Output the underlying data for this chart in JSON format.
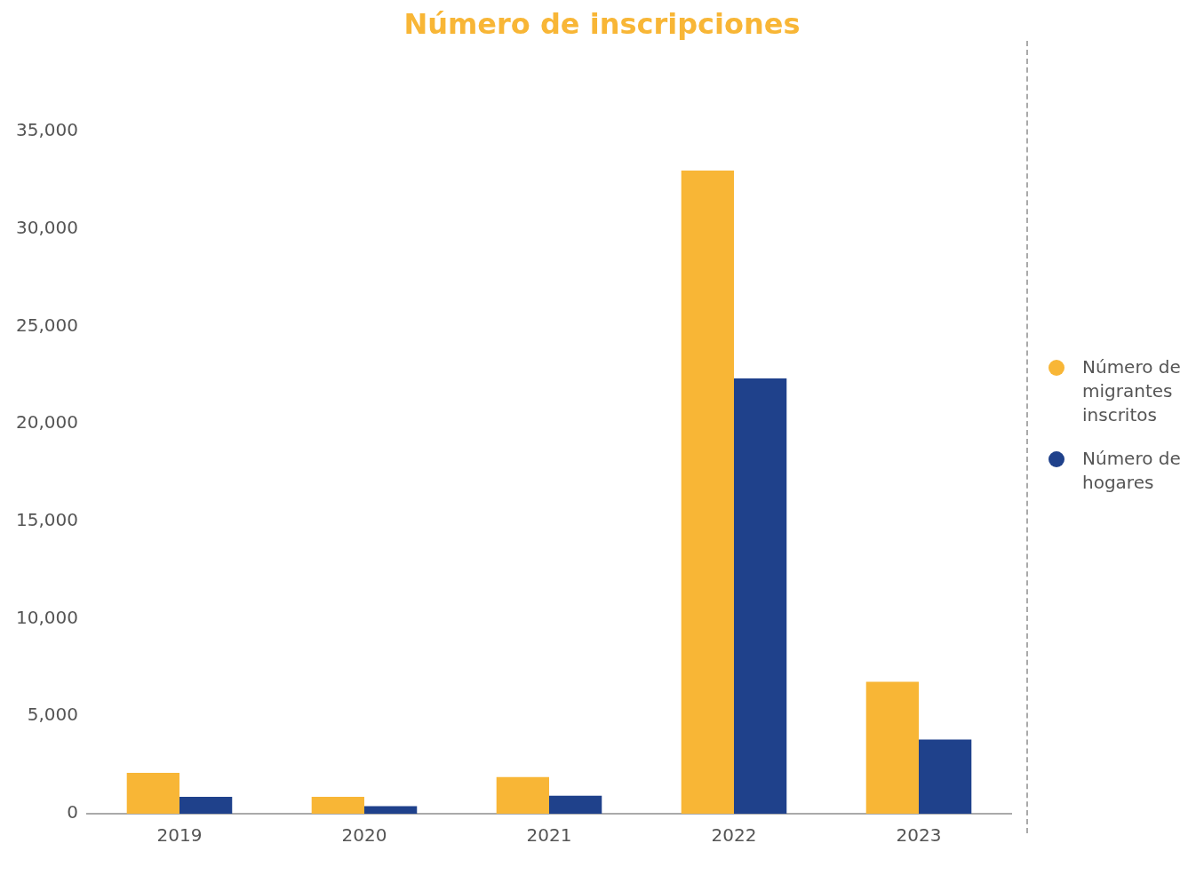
{
  "chart_data": {
    "type": "bar",
    "title": "Número de inscripciones",
    "categories": [
      "2019",
      "2020",
      "2021",
      "2022",
      "2023"
    ],
    "series": [
      {
        "name": "Número de migrantes inscritos",
        "color": "#f8b636",
        "values": [
          2100,
          870,
          1880,
          33000,
          6770
        ]
      },
      {
        "name": "Número de hogares",
        "color": "#1f418b",
        "values": [
          870,
          390,
          920,
          22330,
          3800
        ]
      }
    ],
    "ylim": [
      0,
      35000
    ],
    "yticks": [
      0,
      {
        "value": 5000,
        "label": "5,000"
      },
      {
        "value": 10000,
        "label": "10,000"
      },
      {
        "value": 15000,
        "label": "15,000"
      },
      {
        "value": 20000,
        "label": "20,000"
      },
      {
        "value": 25000,
        "label": "25,000"
      },
      {
        "value": 30000,
        "label": "30,000"
      },
      {
        "value": 35000,
        "label": "35,000"
      }
    ],
    "grid": false,
    "legend": "right",
    "marker": "circle"
  }
}
